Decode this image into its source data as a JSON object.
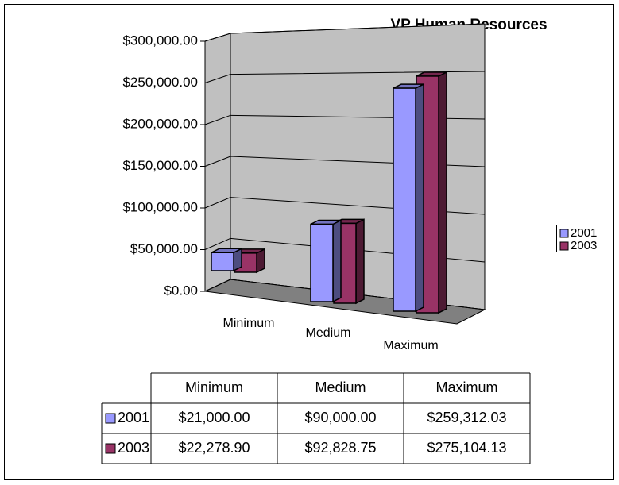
{
  "chart_data": {
    "type": "bar",
    "title": "VP Human Resources",
    "categories": [
      "Minimum",
      "Medium",
      "Maximum"
    ],
    "series": [
      {
        "name": "2001",
        "color": "#9999ff",
        "values": [
          21000,
          90000,
          259312.03
        ],
        "value_labels": [
          "$21,000.00",
          "$90,000.00",
          "$259,312.03"
        ]
      },
      {
        "name": "2003",
        "color": "#993366",
        "values": [
          22278.9,
          92828.75,
          275104.13
        ],
        "value_labels": [
          "$22,278.90",
          "$92,828.75",
          "$275,104.13"
        ]
      }
    ],
    "ylim": [
      0,
      300000
    ],
    "yticks": [
      {
        "value": 0,
        "label": "$0.00"
      },
      {
        "value": 50000,
        "label": "$50,000.00"
      },
      {
        "value": 100000,
        "label": "$100,000.00"
      },
      {
        "value": 150000,
        "label": "$150,000.00"
      },
      {
        "value": 200000,
        "label": "$200,000.00"
      },
      {
        "value": 250000,
        "label": "$250,000.00"
      },
      {
        "value": 300000,
        "label": "$300,000.00"
      }
    ],
    "grid": true,
    "legend": "right"
  }
}
